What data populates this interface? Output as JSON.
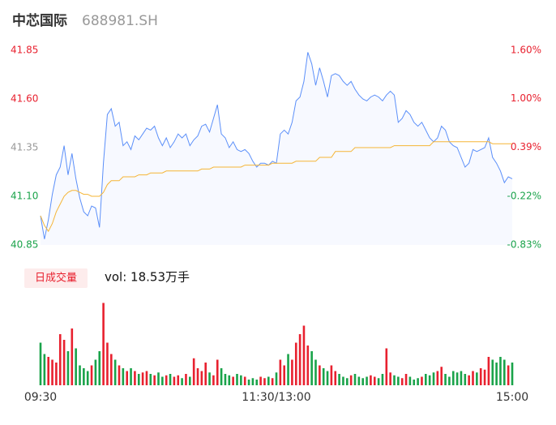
{
  "chart_data": {
    "type": "intraday",
    "title": "中芯国际",
    "subtitle": "688981.SH",
    "xlim": [
      0,
      120
    ],
    "xticks": [
      {
        "value": 0,
        "label": "09:30"
      },
      {
        "value": 60,
        "label": "11:30/13:00"
      },
      {
        "value": 120,
        "label": "15:00"
      }
    ],
    "ylim": [
      40.85,
      41.85
    ],
    "yticks": [
      41.85,
      {
        "value": 41.6,
        "label": "41.60"
      },
      41.35,
      {
        "value": 41.1,
        "label": "41.10"
      },
      40.85
    ],
    "y2lim": [
      -0.83,
      1.6
    ],
    "y2ticks": [
      {
        "value": 1.6,
        "label": "1.60%"
      },
      {
        "value": 1.0,
        "label": "1.00%"
      },
      {
        "value": 0.39,
        "label": "0.39%"
      },
      {
        "value": -0.22,
        "label": "-0.22%"
      },
      {
        "value": -0.83,
        "label": "-0.83%"
      }
    ],
    "up_color": "#e8212f",
    "down_color": "#1aa34a",
    "mid_color": "#999999",
    "series": [
      {
        "color": "#5b8ff9",
        "values": [
          41.0,
          40.88,
          40.98,
          41.11,
          41.21,
          41.25,
          41.36,
          41.21,
          41.32,
          41.19,
          41.09,
          41.02,
          41.0,
          41.05,
          41.04,
          40.94,
          41.27,
          41.52,
          41.55,
          41.46,
          41.48,
          41.36,
          41.38,
          41.34,
          41.41,
          41.39,
          41.42,
          41.45,
          41.44,
          41.46,
          41.4,
          41.36,
          41.4,
          41.35,
          41.38,
          41.42,
          41.4,
          41.42,
          41.36,
          41.39,
          41.41,
          41.46,
          41.47,
          41.43,
          41.5,
          41.57,
          41.42,
          41.4,
          41.35,
          41.38,
          41.34,
          41.33,
          41.34,
          41.32,
          41.28,
          41.25,
          41.27,
          41.27,
          41.26,
          41.28,
          41.27,
          41.42,
          41.44,
          41.42,
          41.48,
          41.59,
          41.61,
          41.69,
          41.84,
          41.78,
          41.67,
          41.76,
          41.69,
          41.61,
          41.72,
          41.73,
          41.72,
          41.69,
          41.67,
          41.69,
          41.65,
          41.62,
          41.6,
          41.59,
          41.61,
          41.62,
          41.61,
          41.59,
          41.62,
          41.64,
          41.62,
          41.48,
          41.5,
          41.54,
          41.52,
          41.48,
          41.46,
          41.48,
          41.44,
          41.4,
          41.38,
          41.4,
          41.46,
          41.44,
          41.38,
          41.36,
          41.35,
          41.3,
          41.25,
          41.27,
          41.34,
          41.33,
          41.34,
          41.35,
          41.4,
          41.3,
          41.27,
          41.23,
          41.17,
          41.2,
          41.19
        ]
      },
      {
        "color": "#f5b536",
        "values": [
          41.0,
          40.95,
          40.92,
          40.96,
          41.02,
          41.06,
          41.1,
          41.12,
          41.13,
          41.13,
          41.12,
          41.11,
          41.11,
          41.1,
          41.1,
          41.1,
          41.12,
          41.16,
          41.18,
          41.18,
          41.18,
          41.2,
          41.2,
          41.2,
          41.2,
          41.21,
          41.21,
          41.21,
          41.22,
          41.22,
          41.22,
          41.22,
          41.23,
          41.23,
          41.23,
          41.23,
          41.23,
          41.23,
          41.23,
          41.23,
          41.23,
          41.24,
          41.24,
          41.24,
          41.25,
          41.25,
          41.25,
          41.25,
          41.25,
          41.25,
          41.25,
          41.25,
          41.26,
          41.26,
          41.26,
          41.26,
          41.26,
          41.26,
          41.26,
          41.27,
          41.27,
          41.27,
          41.27,
          41.27,
          41.27,
          41.28,
          41.28,
          41.28,
          41.28,
          41.28,
          41.28,
          41.3,
          41.3,
          41.3,
          41.3,
          41.33,
          41.33,
          41.33,
          41.33,
          41.33,
          41.35,
          41.35,
          41.35,
          41.35,
          41.35,
          41.35,
          41.35,
          41.35,
          41.35,
          41.35,
          41.36,
          41.36,
          41.36,
          41.36,
          41.36,
          41.36,
          41.36,
          41.36,
          41.36,
          41.36,
          41.38,
          41.38,
          41.38,
          41.38,
          41.38,
          41.38,
          41.38,
          41.38,
          41.38,
          41.38,
          41.38,
          41.38,
          41.38,
          41.38,
          41.38,
          41.37,
          41.37,
          41.37,
          41.37,
          41.37,
          41.37
        ]
      }
    ],
    "volume": {
      "label": "日成交量",
      "summary": "vol: 18.53万手",
      "ylim": [
        0,
        3000
      ],
      "values": [
        1500,
        1100,
        1000,
        900,
        800,
        1800,
        1600,
        1200,
        2000,
        1300,
        700,
        600,
        500,
        700,
        900,
        1200,
        2900,
        1500,
        1100,
        900,
        700,
        600,
        500,
        600,
        500,
        400,
        450,
        500,
        400,
        350,
        450,
        300,
        350,
        400,
        300,
        350,
        250,
        400,
        300,
        950,
        600,
        500,
        800,
        450,
        350,
        900,
        600,
        400,
        350,
        300,
        400,
        350,
        300,
        200,
        250,
        200,
        300,
        250,
        300,
        250,
        450,
        900,
        700,
        1100,
        900,
        1500,
        1800,
        2100,
        1400,
        1200,
        900,
        700,
        600,
        500,
        700,
        500,
        400,
        300,
        250,
        350,
        400,
        300,
        250,
        300,
        350,
        300,
        250,
        400,
        1300,
        450,
        350,
        300,
        250,
        400,
        300,
        200,
        250,
        300,
        400,
        350,
        450,
        500,
        650,
        400,
        300,
        500,
        450,
        500,
        400,
        350,
        500,
        450,
        600,
        550,
        1000,
        900,
        800,
        1000,
        900,
        700,
        800
      ]
    }
  }
}
